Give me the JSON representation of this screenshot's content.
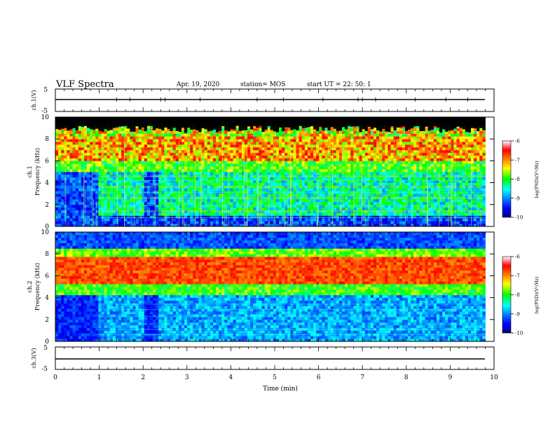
{
  "header": {
    "title": "VLF Spectra",
    "date": "Apr. 19, 2020",
    "station": "station= MOS",
    "start": "start  UT =   22: 50: 1"
  },
  "chart_data": [
    {
      "type": "line",
      "panel": "ch1-voltage",
      "ylabel": "ch.1(V)",
      "x_range": [
        0,
        10
      ],
      "ylim": [
        -5,
        5
      ],
      "y_ticks": [
        "5",
        "-5"
      ],
      "series": [
        {
          "x": [
            0,
            9.8
          ],
          "y": [
            0,
            0
          ]
        }
      ]
    },
    {
      "type": "heatmap",
      "panel": "ch1-spectrogram",
      "ylabel": "ch.1\nFrequency (kHz)",
      "x_range": [
        0,
        10
      ],
      "data_end_min": 9.8,
      "ylim": [
        0,
        10
      ],
      "y_ticks": [
        0,
        2,
        4,
        6,
        8,
        10
      ],
      "colorbar": {
        "label": "log(PSD)(V²/Hz)",
        "range": [
          -10,
          -6
        ],
        "ticks": [
          "-6",
          "-7",
          "-8",
          "-9",
          "-10"
        ]
      },
      "features": {
        "quiet_intervals_min": [
          [
            0,
            1.0
          ],
          [
            2.0,
            2.35
          ]
        ],
        "hiss_band_khz": [
          6,
          8
        ],
        "cutoff_khz": 9.2,
        "signal_onset_min": [
          1.0,
          2.35
        ]
      }
    },
    {
      "type": "heatmap",
      "panel": "ch2-spectrogram",
      "ylabel": "ch.2\nFrequency (kHz)",
      "x_range": [
        0,
        10
      ],
      "data_end_min": 9.8,
      "ylim": [
        0,
        10
      ],
      "y_ticks": [
        0,
        2,
        4,
        6,
        8,
        10
      ],
      "colorbar": {
        "label": "log(PSD)(V²/Hz)",
        "range": [
          -10,
          -6
        ],
        "ticks": [
          "-6",
          "-7",
          "-8",
          "-9",
          "-10"
        ]
      },
      "features": {
        "hiss_band_khz": [
          5.2,
          7.8
        ],
        "quiet_intervals_min": [
          [
            0,
            1.0
          ],
          [
            2.0,
            2.35
          ]
        ]
      }
    },
    {
      "type": "line",
      "panel": "ch3-voltage",
      "ylabel": "ch.3(V)",
      "x_range": [
        0,
        10
      ],
      "ylim": [
        -5,
        5
      ],
      "y_ticks": [
        "5",
        "-5"
      ],
      "series": [
        {
          "x": [
            0,
            9.8
          ],
          "y": [
            0,
            0
          ]
        }
      ]
    }
  ],
  "x_axis": {
    "label": "Time  (min)",
    "ticks": [
      "0",
      "1",
      "2",
      "3",
      "4",
      "5",
      "6",
      "7",
      "8",
      "9",
      "10"
    ]
  }
}
